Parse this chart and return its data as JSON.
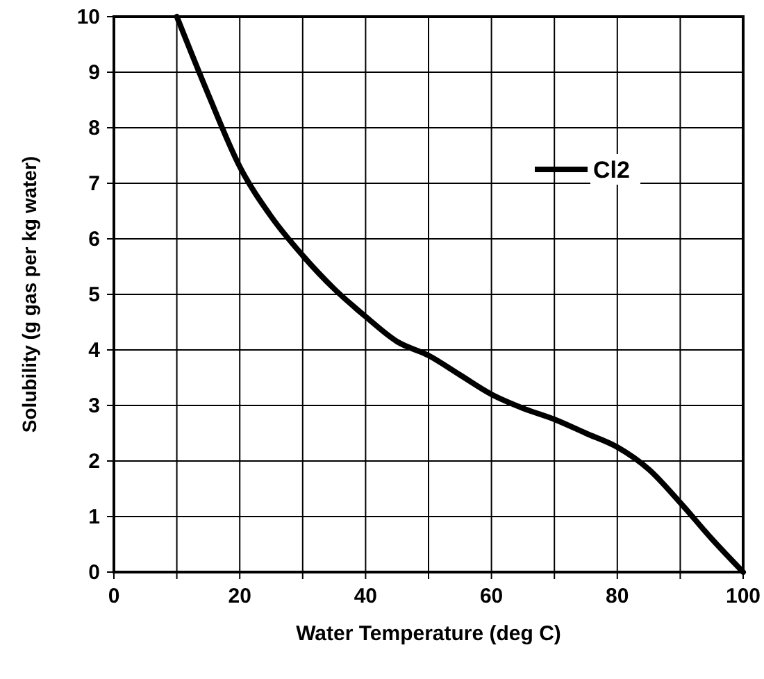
{
  "chart_data": {
    "type": "line",
    "xlabel": "Water Temperature (deg C)",
    "ylabel": "Solubility (g gas per kg water)",
    "x": [
      10,
      15,
      20,
      25,
      30,
      35,
      40,
      45,
      50,
      55,
      60,
      65,
      70,
      75,
      80,
      85,
      90,
      95,
      100
    ],
    "series": [
      {
        "name": "Cl2",
        "color": "#000000",
        "values": [
          10,
          8.6,
          7.3,
          6.4,
          5.7,
          5.1,
          4.6,
          4.15,
          3.9,
          3.55,
          3.2,
          2.95,
          2.75,
          2.5,
          2.25,
          1.85,
          1.25,
          0.6,
          0
        ]
      }
    ],
    "xlim": [
      0,
      100
    ],
    "ylim": [
      0,
      10
    ],
    "xticks": [
      0,
      {
        "value": 10,
        "label": null
      },
      20,
      {
        "value": 30,
        "label": null
      },
      40,
      {
        "value": 50,
        "label": null
      },
      60,
      {
        "value": 70,
        "label": null
      },
      80,
      {
        "value": 90,
        "label": null
      },
      100
    ],
    "yticks": [
      0,
      1,
      2,
      3,
      4,
      5,
      6,
      7,
      8,
      9,
      10
    ],
    "grid": true,
    "legend": "top right",
    "marker": "none",
    "line_style": "solid"
  }
}
